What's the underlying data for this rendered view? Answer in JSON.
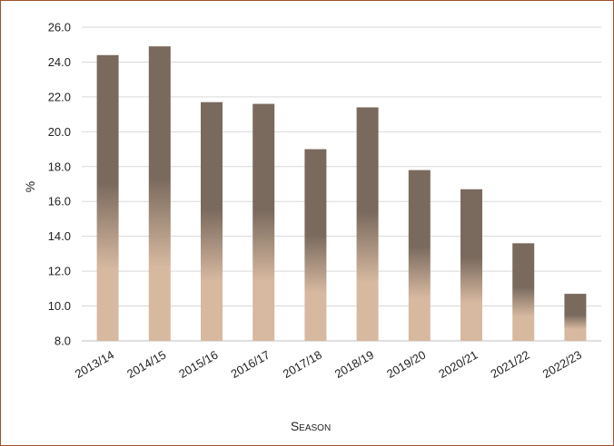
{
  "chart_data": {
    "type": "bar",
    "title": "",
    "xlabel": "Season",
    "ylabel": "%",
    "categories": [
      "2013/14",
      "2014/15",
      "2015/16",
      "2016/17",
      "2017/18",
      "2018/19",
      "2019/20",
      "2020/21",
      "2021/22",
      "2022/23"
    ],
    "values": [
      24.4,
      24.9,
      21.7,
      21.6,
      19.0,
      21.4,
      17.8,
      16.7,
      13.6,
      10.7
    ],
    "ylim": [
      8.0,
      26.0
    ],
    "yticks": [
      "8.0",
      "10.0",
      "12.0",
      "14.0",
      "16.0",
      "18.0",
      "20.0",
      "22.0",
      "24.0",
      "26.0"
    ],
    "grid": true,
    "legend": "none",
    "colors": {
      "bar_top": "#7a6a5e",
      "bar_bottom": "#d7b9a0",
      "grid": "#d9d9d9",
      "frame": "#a0522d"
    }
  }
}
